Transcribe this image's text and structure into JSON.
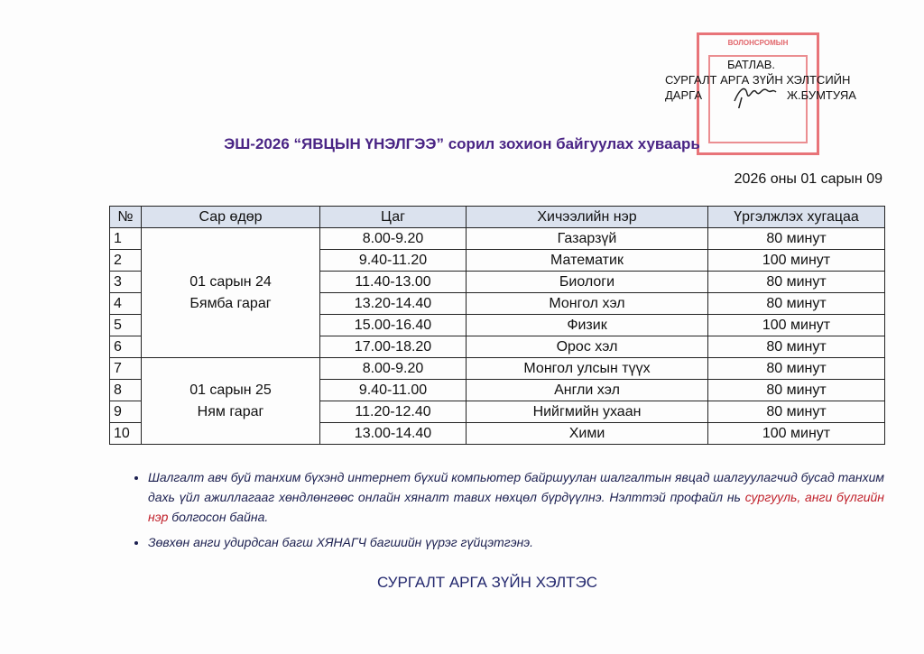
{
  "approval": {
    "line1": "БАТЛАВ.",
    "line2": "СУРГАЛТ АРГА ЗҮЙН ХЭЛТСИЙН",
    "line3_left": "ДАРГА",
    "line3_right": "Ж.БУМТУЯА",
    "stamp_text": "ВОЛОНСРОМЫН"
  },
  "title": "ЭШ-2026 “ЯВЦЫН ҮНЭЛГЭЭ” сорил зохион байгуулах хуваарь",
  "date": "2026 оны 01 сарын 09",
  "table": {
    "headers": [
      "№",
      "Сар өдөр",
      "Цаг",
      "Хичээлийн нэр",
      "Үргэлжлэх хугацаа"
    ],
    "days": [
      {
        "line1": "01 сарын 24",
        "line2": "Бямба гараг"
      },
      {
        "line1": "01 сарын 25",
        "line2": "Ням гараг"
      }
    ],
    "rows": [
      {
        "no": "1",
        "time": "8.00-9.20",
        "subject": "Газарзүй",
        "duration": "80 минут"
      },
      {
        "no": "2",
        "time": "9.40-11.20",
        "subject": "Математик",
        "duration": "100 минут"
      },
      {
        "no": "3",
        "time": "11.40-13.00",
        "subject": "Биологи",
        "duration": "80 минут"
      },
      {
        "no": "4",
        "time": "13.20-14.40",
        "subject": "Монгол хэл",
        "duration": "80 минут"
      },
      {
        "no": "5",
        "time": "15.00-16.40",
        "subject": "Физик",
        "duration": "100 минут"
      },
      {
        "no": "6",
        "time": "17.00-18.20",
        "subject": "Орос хэл",
        "duration": "80 минут"
      },
      {
        "no": "7",
        "time": "8.00-9.20",
        "subject": "Монгол улсын түүх",
        "duration": "80 минут"
      },
      {
        "no": "8",
        "time": "9.40-11.00",
        "subject": "Англи хэл",
        "duration": "80 минут"
      },
      {
        "no": "9",
        "time": "11.20-12.40",
        "subject": "Нийгмийн ухаан",
        "duration": "80 минут"
      },
      {
        "no": "10",
        "time": "13.00-14.40",
        "subject": "Хими",
        "duration": "100 минут"
      }
    ]
  },
  "notes": {
    "n1_a": "Шалгалт авч буй танхим бүхэнд интернет бүхий компьютер байршуулан шалгалтын явцад шалгуулагчид бусад танхим дахь үйл ажиллагааг хөндлөнгөөс онлайн хяналт тавих нөхцөл бүрдүүлнэ. Нэлттэй профайл нь ",
    "n1_red": "сургууль, анги бүлгийн нэр",
    "n1_b": " болгосон байна.",
    "n2": "Зөвхөн анги удирдсан багш ХЯНАГЧ багшийн үүрэг гүйцэтгэнэ."
  },
  "footer": "СУРГАЛТ АРГА ЗҮЙН ХЭЛТЭС"
}
